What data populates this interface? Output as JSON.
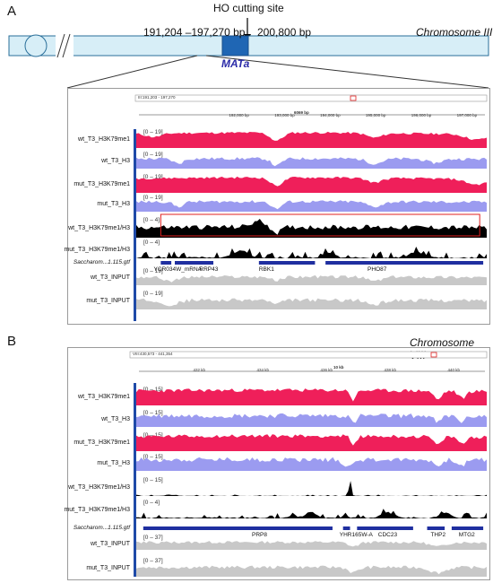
{
  "panel_a": {
    "letter": "A",
    "ho_site": "HO cutting site",
    "left_coords": "191,204 –197,270 bp",
    "right_coord": "200,800 bp",
    "chromosome": "Chromosome III",
    "locus": "MATa",
    "region_box": "III:191,203 - 197,270",
    "span": "6069 bp",
    "ticks": [
      "192,000 bp",
      "193,000 bp",
      "194,000 bp",
      "195,000 bp",
      "196,000 bp",
      "197,000 bp"
    ],
    "gtf_label": "Saccharom...1.115.gtf",
    "genes": [
      "YCR034W_mRNA",
      "RRP43",
      "RBK1",
      "PHO87"
    ],
    "tracks": [
      {
        "name": "wt_T3_H3K79me1",
        "range": "[0 – 19]",
        "color": "#ef1f5a"
      },
      {
        "name": "wt_T3_H3",
        "range": "[0 – 19]",
        "color": "#9b9bf0"
      },
      {
        "name": "mut_T3_H3K79me1",
        "range": "[0 – 19]",
        "color": "#ef1f5a"
      },
      {
        "name": "mut_T3_H3",
        "range": "[0 – 19]",
        "color": "#9b9bf0"
      },
      {
        "name": "wt_T3_H3K79me1/H3",
        "range": "[0 – 4]",
        "color": "#000000"
      },
      {
        "name": "mut_T3_H3K79me1/H3",
        "range": "[0 – 4]",
        "color": "#000000"
      },
      {
        "name": "wt_T3_INPUT",
        "range": "[0 – 19]",
        "color": "#c8c8c8"
      },
      {
        "name": "mut_T3_INPUT",
        "range": "[0 – 19]",
        "color": "#c8c8c8"
      }
    ]
  },
  "panel_b": {
    "letter": "B",
    "chromosome": "Chromosome VIII",
    "region_box": "VIII:430,573 - 441,354",
    "span": "10 kb",
    "ticks": [
      "432 kb",
      "434 kb",
      "436 kb",
      "438 kb",
      "440 kb"
    ],
    "gtf_label": "Saccharom...1.115.gtf",
    "genes": [
      "PRP8",
      "YHR165W-A",
      "CDC23",
      "THP2",
      "MTG2"
    ],
    "tracks": [
      {
        "name": "wt_T3_H3K79me1",
        "range": "[0 – 15]",
        "color": "#ef1f5a"
      },
      {
        "name": "wt_T3_H3",
        "range": "[0 – 15]",
        "color": "#9b9bf0"
      },
      {
        "name": "mut_T3_H3K79me1",
        "range": "[0 – 15]",
        "color": "#ef1f5a"
      },
      {
        "name": "mut_T3_H3",
        "range": "[0 – 15]",
        "color": "#9b9bf0"
      },
      {
        "name": "wt_T3_H3K79me1/H3",
        "range": "[0 – 15]",
        "color": "#000000"
      },
      {
        "name": "mut_T3_H3K79me1/H3",
        "range": "[0 – 4]",
        "color": "#000000"
      },
      {
        "name": "wt_T3_INPUT",
        "range": "[0 – 37]",
        "color": "#c8c8c8"
      },
      {
        "name": "mut_T3_INPUT",
        "range": "[0 – 37]",
        "color": "#c8c8c8"
      }
    ]
  }
}
